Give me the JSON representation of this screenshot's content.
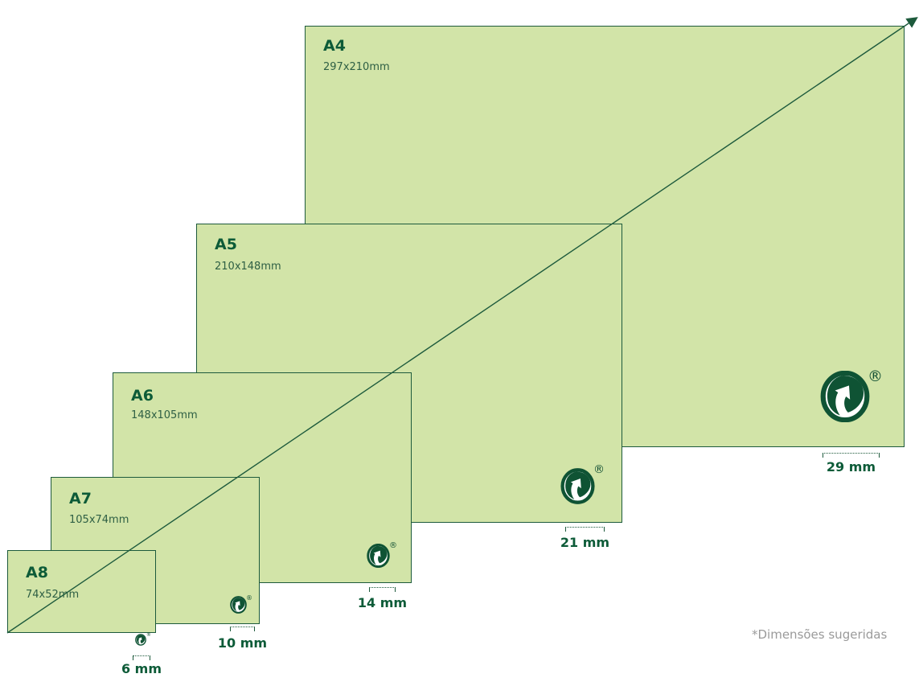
{
  "sheets": {
    "a4": {
      "name": "A4",
      "size": "297x210mm",
      "logo_width": "29 mm"
    },
    "a5": {
      "name": "A5",
      "size": "210x148mm",
      "logo_width": "21 mm"
    },
    "a6": {
      "name": "A6",
      "size": "148x105mm",
      "logo_width": "14 mm"
    },
    "a7": {
      "name": "A7",
      "size": "105x74mm",
      "logo_width": "10 mm"
    },
    "a8": {
      "name": "A8",
      "size": "74x52mm",
      "logo_width": "6 mm"
    }
  },
  "logo": {
    "icon": "green-dot-recycling-logo",
    "registered_mark": "®"
  },
  "colors": {
    "sheet_fill": "#d2e4a8",
    "accent_green": "#0d5b38",
    "diagonal": "#1d5a3c"
  },
  "footnote": "*Dimensões sugeridas"
}
